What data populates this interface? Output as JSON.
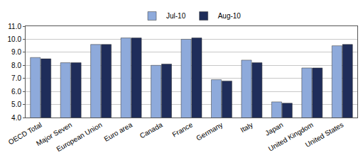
{
  "chart_data": {
    "type": "bar",
    "categories": [
      "OECD Total",
      "Major Seven",
      "European Union",
      "Euro area",
      "Canada",
      "France",
      "Germany",
      "Italy",
      "Japan",
      "United Kingdom",
      "United States"
    ],
    "series": [
      {
        "name": "Jul-10",
        "color": "#8eaadb",
        "values": [
          8.6,
          8.2,
          9.6,
          10.1,
          8.0,
          10.0,
          6.9,
          8.4,
          5.2,
          7.8,
          9.5
        ]
      },
      {
        "name": "Aug-10",
        "color": "#1f2d5a",
        "values": [
          8.5,
          8.2,
          9.6,
          10.1,
          8.1,
          10.1,
          6.8,
          8.2,
          5.1,
          7.8,
          9.6
        ]
      }
    ],
    "ylim": [
      4.0,
      11.0
    ],
    "yticks": [
      {
        "value": 4,
        "label": "4.0"
      },
      {
        "value": 5,
        "label": "5.0"
      },
      {
        "value": 6,
        "label": "6.0"
      },
      {
        "value": 7,
        "label": "7.0"
      },
      {
        "value": 8,
        "label": "8.0"
      },
      {
        "value": 9,
        "label": "9.0"
      },
      {
        "value": 10,
        "label": "10.0"
      },
      {
        "value": 11,
        "label": "11.0"
      }
    ],
    "grid": true,
    "legend": "top"
  }
}
